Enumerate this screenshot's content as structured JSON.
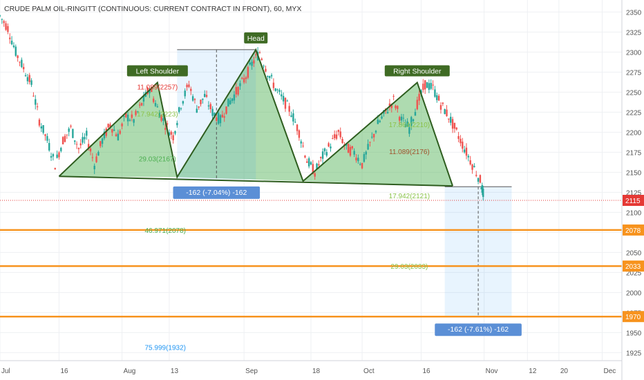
{
  "chart_data": {
    "type": "candlestick",
    "title": "CRUDE PALM OIL-RINGITT (CONTINUOUS: CURRENT CONTRACT IN FRONT), 60, MYX",
    "ylim": [
      1915,
      2365
    ],
    "y_ticks": [
      1925,
      1950,
      1975,
      2000,
      2025,
      2050,
      2075,
      2100,
      2125,
      2150,
      2175,
      2200,
      2225,
      2250,
      2275,
      2300,
      2325,
      2350
    ],
    "x_ticks": [
      {
        "label": "Jul",
        "x": 0
      },
      {
        "label": "16",
        "x": 15
      },
      {
        "label": "Aug",
        "x": 31
      },
      {
        "label": "13",
        "x": 43
      },
      {
        "label": "Sep",
        "x": 62
      },
      {
        "label": "18",
        "x": 79
      },
      {
        "label": "Oct",
        "x": 92
      },
      {
        "label": "16",
        "x": 107
      },
      {
        "label": "Nov",
        "x": 123
      },
      {
        "label": "12",
        "x": 134
      },
      {
        "label": "20",
        "x": 142
      },
      {
        "label": "Dec",
        "x": 153
      }
    ],
    "xlim": [
      0,
      158
    ],
    "series": [
      {
        "name": "price",
        "values": [
          [
            0,
            2345
          ],
          [
            2,
            2330
          ],
          [
            4,
            2300
          ],
          [
            6,
            2280
          ],
          [
            8,
            2260
          ],
          [
            10,
            2215
          ],
          [
            12,
            2190
          ],
          [
            14,
            2160
          ],
          [
            16,
            2190
          ],
          [
            18,
            2205
          ],
          [
            20,
            2180
          ],
          [
            22,
            2195
          ],
          [
            24,
            2160
          ],
          [
            26,
            2190
          ],
          [
            28,
            2210
          ],
          [
            30,
            2195
          ],
          [
            32,
            2220
          ],
          [
            34,
            2215
          ],
          [
            36,
            2235
          ],
          [
            38,
            2255
          ],
          [
            40,
            2230
          ],
          [
            42,
            2210
          ],
          [
            44,
            2195
          ],
          [
            46,
            2235
          ],
          [
            48,
            2260
          ],
          [
            50,
            2230
          ],
          [
            52,
            2245
          ],
          [
            54,
            2225
          ],
          [
            56,
            2215
          ],
          [
            58,
            2235
          ],
          [
            60,
            2250
          ],
          [
            62,
            2265
          ],
          [
            64,
            2285
          ],
          [
            66,
            2300
          ],
          [
            68,
            2275
          ],
          [
            70,
            2255
          ],
          [
            72,
            2240
          ],
          [
            74,
            2225
          ],
          [
            76,
            2200
          ],
          [
            78,
            2165
          ],
          [
            80,
            2150
          ],
          [
            82,
            2170
          ],
          [
            84,
            2185
          ],
          [
            86,
            2200
          ],
          [
            88,
            2180
          ],
          [
            90,
            2175
          ],
          [
            92,
            2160
          ],
          [
            94,
            2185
          ],
          [
            96,
            2210
          ],
          [
            98,
            2225
          ],
          [
            100,
            2240
          ],
          [
            102,
            2215
          ],
          [
            104,
            2205
          ],
          [
            106,
            2235
          ],
          [
            108,
            2260
          ],
          [
            110,
            2255
          ],
          [
            112,
            2235
          ],
          [
            114,
            2220
          ],
          [
            116,
            2200
          ],
          [
            118,
            2180
          ],
          [
            120,
            2160
          ],
          [
            122,
            2140
          ],
          [
            123,
            2118
          ]
        ]
      }
    ],
    "last_price": 2115,
    "levels": [
      2078,
      2033,
      1970
    ],
    "pattern_labels": [
      "Left Shoulder",
      "Head",
      "Right Shoulder"
    ],
    "pattern_points": [
      {
        "x": 15,
        "y": 2145
      },
      {
        "x": 40,
        "y": 2262
      },
      {
        "x": 45,
        "y": 2144
      },
      {
        "x": 65,
        "y": 2303
      },
      {
        "x": 77,
        "y": 2139
      },
      {
        "x": 106,
        "y": 2262
      },
      {
        "x": 115,
        "y": 2133
      }
    ],
    "measure_boxes": [
      {
        "x0": 45,
        "x1": 65,
        "y0": 2303,
        "y1": 2141,
        "label": "-162 (-7.04%) -162"
      },
      {
        "x0": 113,
        "x1": 130,
        "y0": 2132,
        "y1": 1970,
        "label": "-162 (-7.61%) -162"
      }
    ],
    "fib_labels": [
      {
        "x": 40,
        "y": 2257,
        "text": "11.089(2257)",
        "color": "#e53935"
      },
      {
        "x": 40,
        "y": 2223,
        "text": "17.942(2223)",
        "color": "#8bc34a"
      },
      {
        "x": 40,
        "y": 2167,
        "text": "29.03(2167)",
        "color": "#4caf50"
      },
      {
        "x": 104,
        "y": 2210,
        "text": "17.864(2210)",
        "color": "#8bc34a"
      },
      {
        "x": 104,
        "y": 2176,
        "text": "11.089(2176)",
        "color": "#a0522d"
      },
      {
        "x": 104,
        "y": 2121,
        "text": "17.942(2121)",
        "color": "#8bc34a"
      },
      {
        "x": 42,
        "y": 2078,
        "text": "46.971(2078)",
        "color": "#4caf50"
      },
      {
        "x": 104,
        "y": 2033,
        "text": "29.03(2033)",
        "color": "#8bc34a"
      },
      {
        "x": 42,
        "y": 1932,
        "text": "75.999(1932)",
        "color": "#2196f3"
      }
    ],
    "grid": true
  }
}
